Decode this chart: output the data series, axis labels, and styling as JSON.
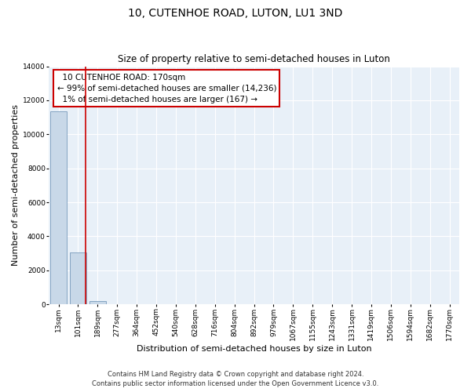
{
  "title": "10, CUTENHOE ROAD, LUTON, LU1 3ND",
  "subtitle": "Size of property relative to semi-detached houses in Luton",
  "xlabel": "Distribution of semi-detached houses by size in Luton",
  "ylabel": "Number of semi-detached properties",
  "categories": [
    "13sqm",
    "101sqm",
    "189sqm",
    "277sqm",
    "364sqm",
    "452sqm",
    "540sqm",
    "628sqm",
    "716sqm",
    "804sqm",
    "892sqm",
    "979sqm",
    "1067sqm",
    "1155sqm",
    "1243sqm",
    "1331sqm",
    "1419sqm",
    "1506sqm",
    "1594sqm",
    "1682sqm",
    "1770sqm"
  ],
  "bar_values": [
    11350,
    3050,
    175,
    20,
    5,
    2,
    1,
    1,
    0,
    0,
    0,
    0,
    0,
    0,
    0,
    0,
    0,
    0,
    0,
    0,
    0
  ],
  "bar_color": "#c8d8e8",
  "bar_edge_color": "#7799bb",
  "property_line_x": 1.4,
  "property_line_color": "#cc0000",
  "annotation_title": "10 CUTENHOE ROAD: 170sqm",
  "annotation_line1": "← 99% of semi-detached houses are smaller (14,236)",
  "annotation_line2": "1% of semi-detached houses are larger (167) →",
  "annotation_box_facecolor": "#ffffff",
  "annotation_box_edgecolor": "#cc0000",
  "ylim": [
    0,
    14000
  ],
  "yticks": [
    0,
    2000,
    4000,
    6000,
    8000,
    10000,
    12000,
    14000
  ],
  "footer_line1": "Contains HM Land Registry data © Crown copyright and database right 2024.",
  "footer_line2": "Contains public sector information licensed under the Open Government Licence v3.0.",
  "plot_bg_color": "#e8f0f8",
  "title_fontsize": 10,
  "subtitle_fontsize": 8.5,
  "axis_label_fontsize": 8,
  "tick_fontsize": 6.5,
  "annotation_fontsize": 7.5,
  "footer_fontsize": 6
}
